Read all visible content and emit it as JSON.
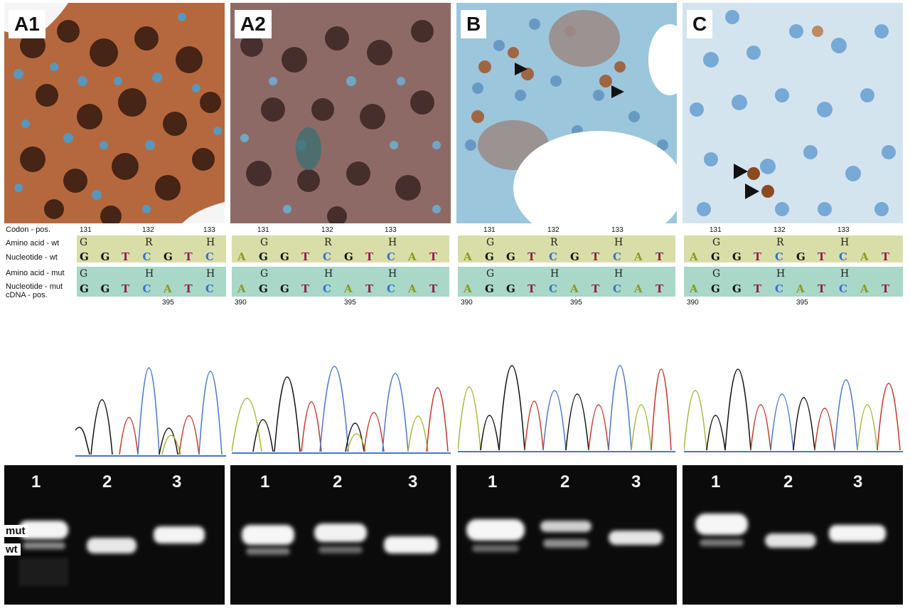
{
  "panels": {
    "a1": {
      "label": "A1"
    },
    "a2": {
      "label": "A2"
    },
    "b": {
      "label": "B"
    },
    "c": {
      "label": "C"
    }
  },
  "row_labels": {
    "codon": "Codon - pos.",
    "aa_wt": "Amino acid - wt",
    "nt_wt": "Nucleotide - wt",
    "aa_mut": "Amino acid - mut",
    "nt_mut": "Nucleotide - mut",
    "cdna": "cDNA - pos."
  },
  "codon_positions": [
    "131",
    "132",
    "133"
  ],
  "cdna_positions": {
    "a1": [
      "395"
    ],
    "other": [
      "390",
      "395"
    ]
  },
  "sequence": {
    "a1": {
      "aa_wt": [
        "G",
        "R",
        "H"
      ],
      "nt_wt": [
        "G",
        "G",
        "T",
        "C",
        "G",
        "T",
        "C"
      ],
      "aa_mut": [
        "G",
        "H",
        "H"
      ],
      "nt_mut": [
        "G",
        "G",
        "T",
        "C",
        "A",
        "T",
        "C"
      ]
    },
    "full": {
      "aa_wt": [
        "G",
        "R",
        "H"
      ],
      "nt_wt": [
        "A",
        "G",
        "G",
        "T",
        "C",
        "G",
        "T",
        "C",
        "A",
        "T"
      ],
      "aa_mut": [
        "G",
        "H",
        "H"
      ],
      "nt_mut": [
        "A",
        "G",
        "G",
        "T",
        "C",
        "A",
        "T",
        "C",
        "A",
        "T"
      ]
    }
  },
  "nucleotide_colors": {
    "A": "#8a9a1e",
    "G": "#111111",
    "T": "#8b1f4a",
    "C": "#3a6fc4"
  },
  "gel": {
    "lanes": [
      "1",
      "2",
      "3"
    ],
    "mut_label": "mut",
    "wt_label": "wt"
  },
  "colors": {
    "band_wt": "#d9dea8",
    "band_mut": "#a9d8c8",
    "trace_black": "#111111",
    "trace_red": "#c0392b",
    "trace_blue": "#4a78c9",
    "trace_green": "#a8b43a"
  }
}
